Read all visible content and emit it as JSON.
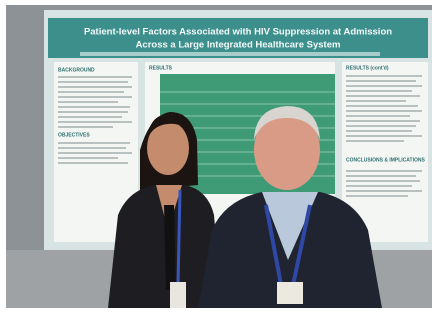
{
  "poster": {
    "title_lines": [
      "Patient-level Factors Associated with HIV Suppression at Admission",
      "Across a Large Integrated Healthcare System"
    ],
    "sections": [
      "BACKGROUND",
      "OBJECTIVES",
      "RESULTS",
      "RESULTS (cont'd)",
      "CONCLUSIONS & IMPLICATIONS"
    ]
  }
}
